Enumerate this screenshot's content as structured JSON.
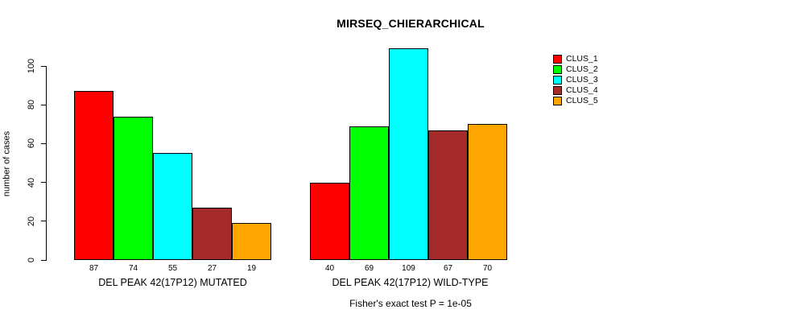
{
  "chart_data": {
    "type": "bar",
    "title": "MIRSEQ_CHIERARCHICAL",
    "ylabel": "number of cases",
    "footer": "Fisher's exact test P = 1e-05",
    "ylim": [
      0,
      110
    ],
    "yticks": [
      0,
      20,
      40,
      60,
      80,
      100
    ],
    "grid": false,
    "value_labels_shown": true,
    "legend_position": "right-outside-top",
    "bar_border_color": "#000000",
    "categories": [
      "DEL PEAK 42(17P12) MUTATED",
      "DEL PEAK 42(17P12) WILD-TYPE"
    ],
    "series": [
      {
        "name": "CLUS_1",
        "color": "#FF0000",
        "values": [
          87,
          40
        ]
      },
      {
        "name": "CLUS_2",
        "color": "#00FF00",
        "values": [
          74,
          69
        ]
      },
      {
        "name": "CLUS_3",
        "color": "#00FFFF",
        "values": [
          55,
          109
        ]
      },
      {
        "name": "CLUS_4",
        "color": "#A52A2A",
        "values": [
          27,
          67
        ]
      },
      {
        "name": "CLUS_5",
        "color": "#FFA500",
        "values": [
          19,
          70
        ]
      }
    ]
  }
}
